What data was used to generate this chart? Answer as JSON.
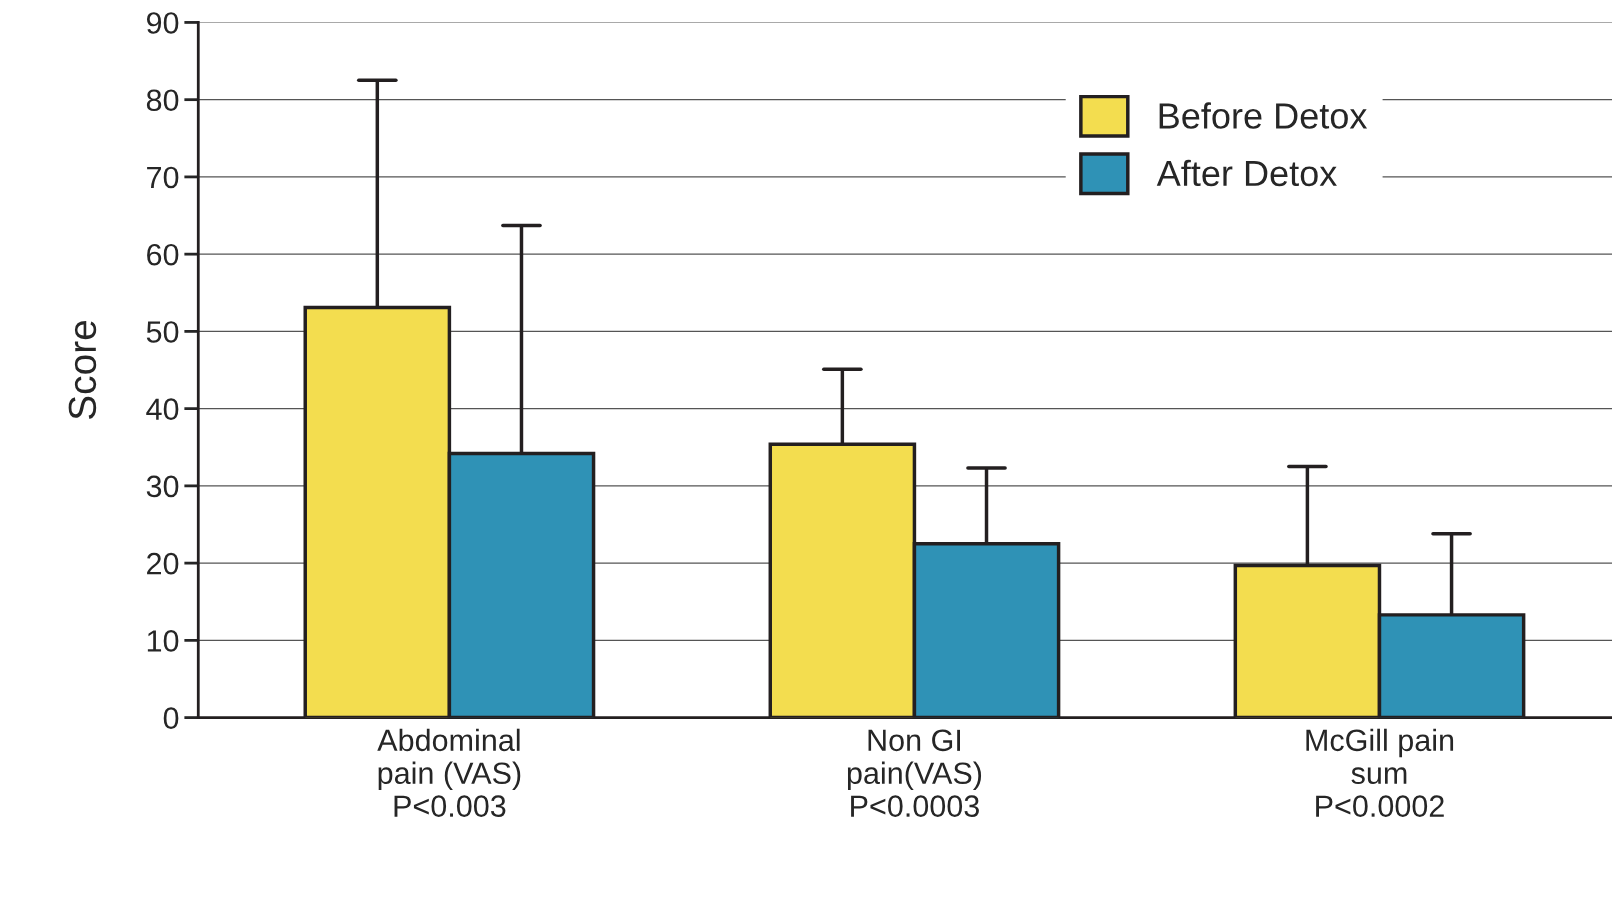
{
  "chart_data": {
    "type": "bar",
    "ylabel": "Score",
    "categories": [
      "Abdominal\npain (VAS)\nP<0.003",
      "Non GI\npain(VAS)\nP<0.0003",
      "McGill pain\nsum\nP<0.0002"
    ],
    "series": [
      {
        "name": "Before Detox",
        "color": "#f3dd4f",
        "values": [
          53.1,
          35.4,
          19.7
        ],
        "errors": [
          [
            53.1,
            82.5
          ],
          [
            35.4,
            45.1
          ],
          [
            19.7,
            32.5
          ]
        ]
      },
      {
        "name": "After Detox",
        "color": "#2f92b6",
        "values": [
          34.2,
          22.5,
          13.3
        ],
        "errors": [
          [
            34.2,
            63.7
          ],
          [
            22.5,
            32.3
          ],
          [
            13.3,
            23.8
          ]
        ]
      }
    ],
    "ylim": [
      0,
      90
    ],
    "yticks": [
      0,
      10,
      20,
      30,
      40,
      50,
      60,
      70,
      80,
      90
    ],
    "grid": "y",
    "legend": "top right"
  }
}
